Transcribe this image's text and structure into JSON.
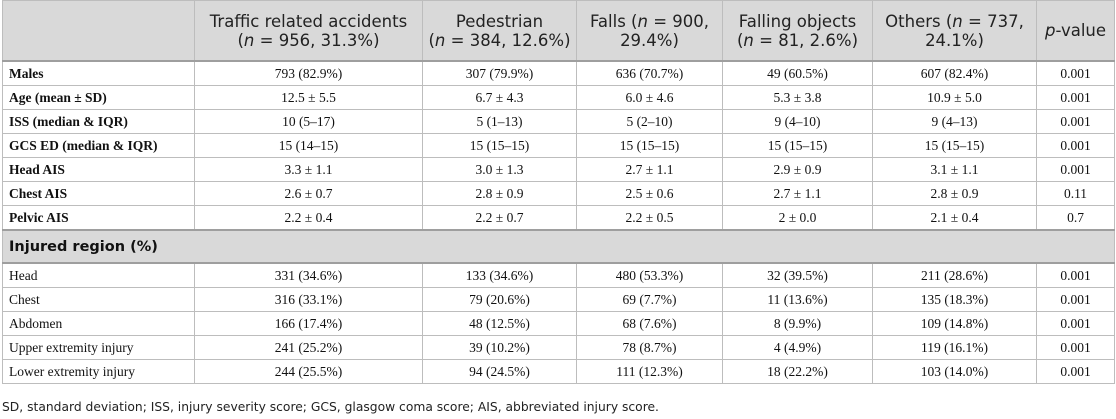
{
  "header": {
    "col0": "",
    "cols": [
      {
        "name": "Traffic related accidents",
        "stats_pre": "(",
        "n": "n",
        "stats_post": " = 956, 31.3%)"
      },
      {
        "name": "Pedestrian",
        "stats_pre": "(",
        "n": "n",
        "stats_post": " = 384, 12.6%)"
      },
      {
        "name": "Falls (",
        "n": "n",
        "stats_post": " = 900, 29.4%)"
      },
      {
        "name": "Falling objects",
        "stats_pre": "(",
        "n": "n",
        "stats_post": " = 81, 2.6%)"
      },
      {
        "name": "Others (",
        "n": "n",
        "stats_post": " = 737, 24.1%)"
      }
    ],
    "pvalue_p": "p",
    "pvalue_rest": "-value"
  },
  "rows": [
    {
      "label": "Males",
      "cells": [
        "793 (82.9%)",
        "307 (79.9%)",
        "636 (70.7%)",
        "49 (60.5%)",
        "607 (82.4%)",
        "0.001"
      ]
    },
    {
      "label": "Age (mean ± SD)",
      "cells": [
        "12.5 ± 5.5",
        "6.7 ± 4.3",
        "6.0 ± 4.6",
        "5.3 ± 3.8",
        "10.9 ± 5.0",
        "0.001"
      ]
    },
    {
      "label": "ISS (median & IQR)",
      "cells": [
        "10 (5–17)",
        "5 (1–13)",
        "5 (2–10)",
        "9 (4–10)",
        "9 (4–13)",
        "0.001"
      ]
    },
    {
      "label": "GCS ED (median & IQR)",
      "cells": [
        "15 (14–15)",
        "15 (15–15)",
        "15 (15–15)",
        "15 (15–15)",
        "15 (15–15)",
        "0.001"
      ]
    },
    {
      "label": "Head AIS",
      "cells": [
        "3.3 ± 1.1",
        "3.0 ± 1.3",
        "2.7 ± 1.1",
        "2.9 ± 0.9",
        "3.1 ± 1.1",
        "0.001"
      ]
    },
    {
      "label": "Chest AIS",
      "cells": [
        "2.6 ± 0.7",
        "2.8 ± 0.9",
        "2.5 ± 0.6",
        "2.7 ± 1.1",
        "2.8 ± 0.9",
        "0.11"
      ]
    },
    {
      "label": "Pelvic AIS",
      "cells": [
        "2.2 ± 0.4",
        "2.2 ± 0.7",
        "2.2 ± 0.5",
        "2 ± 0.0",
        "2.1 ± 0.4",
        "0.7"
      ]
    }
  ],
  "section_title": "Injured region (%)",
  "region_rows": [
    {
      "label": "Head",
      "cells": [
        "331 (34.6%)",
        "133 (34.6%)",
        "480 (53.3%)",
        "32 (39.5%)",
        "211 (28.6%)",
        "0.001"
      ]
    },
    {
      "label": "Chest",
      "cells": [
        "316 (33.1%)",
        "79 (20.6%)",
        "69 (7.7%)",
        "11 (13.6%)",
        "135 (18.3%)",
        "0.001"
      ]
    },
    {
      "label": "Abdomen",
      "cells": [
        "166 (17.4%)",
        "48 (12.5%)",
        "68 (7.6%)",
        "8 (9.9%)",
        "109 (14.8%)",
        "0.001"
      ]
    },
    {
      "label": "Upper extremity injury",
      "cells": [
        "241 (25.2%)",
        "39 (10.2%)",
        "78 (8.7%)",
        "4 (4.9%)",
        "119 (16.1%)",
        "0.001"
      ]
    },
    {
      "label": "Lower extremity injury",
      "cells": [
        "244 (25.5%)",
        "94 (24.5%)",
        "111 (12.3%)",
        "18 (22.2%)",
        "103 (14.0%)",
        "0.001"
      ]
    }
  ],
  "footnote": "SD, standard deviation; ISS, injury severity score; GCS, glasgow coma score; AIS, abbreviated injury score."
}
